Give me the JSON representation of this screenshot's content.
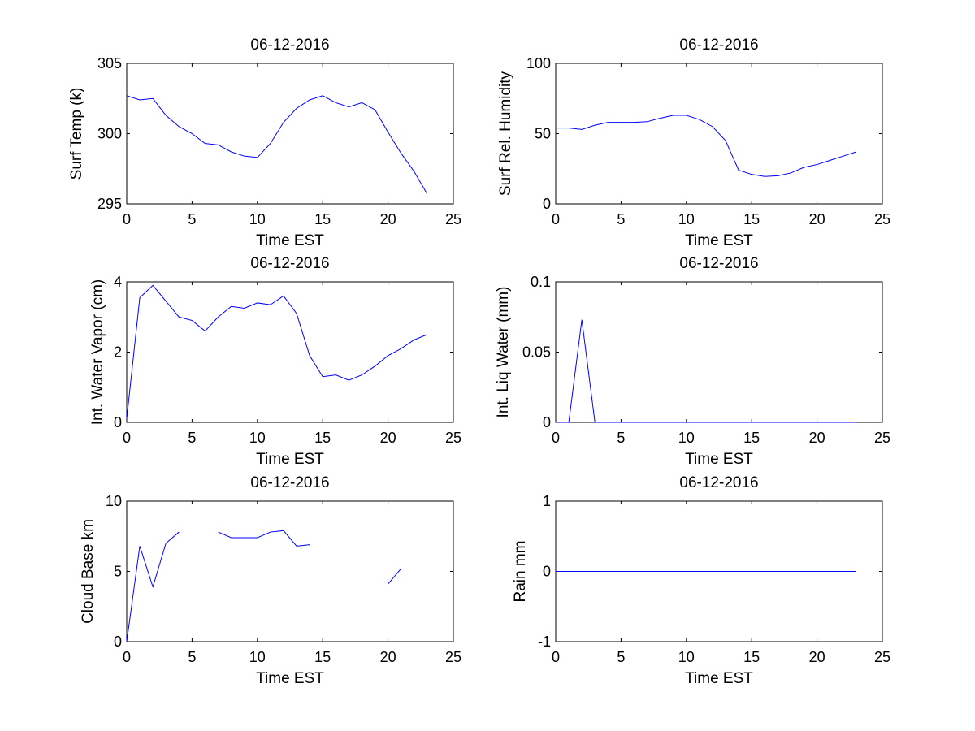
{
  "chart_data": [
    {
      "id": "surf-temp",
      "type": "line",
      "title": "06-12-2016",
      "xlabel": "Time EST",
      "ylabel": "Surf Temp (k)",
      "xlim": [
        0,
        25
      ],
      "ylim": [
        295,
        305
      ],
      "xticks": [
        0,
        5,
        10,
        15,
        20,
        25
      ],
      "yticks": [
        295,
        300,
        305
      ],
      "series": [
        {
          "name": "Surf Temp",
          "x": [
            0,
            1,
            2,
            3,
            4,
            5,
            6,
            7,
            8,
            9,
            10,
            11,
            12,
            13,
            14,
            15,
            16,
            17,
            18,
            19,
            20,
            21,
            22,
            23
          ],
          "y": [
            302.7,
            302.4,
            302.5,
            301.3,
            300.5,
            300.0,
            299.3,
            299.2,
            298.7,
            298.4,
            298.3,
            299.3,
            300.8,
            301.8,
            302.4,
            302.7,
            302.2,
            301.9,
            302.2,
            301.7,
            300.1,
            298.6,
            297.3,
            295.7
          ]
        }
      ]
    },
    {
      "id": "surf-rh",
      "type": "line",
      "title": "06-12-2016",
      "xlabel": "Time EST",
      "ylabel": "Surf Rel. Humidity",
      "xlim": [
        0,
        25
      ],
      "ylim": [
        0,
        100
      ],
      "xticks": [
        0,
        5,
        10,
        15,
        20,
        25
      ],
      "yticks": [
        0,
        50,
        100
      ],
      "series": [
        {
          "name": "Surf Rel. Humidity",
          "x": [
            0,
            1,
            2,
            3,
            4,
            5,
            6,
            7,
            8,
            9,
            10,
            11,
            12,
            13,
            14,
            15,
            16,
            17,
            18,
            19,
            20,
            21,
            22,
            23
          ],
          "y": [
            54,
            54,
            53,
            56,
            58,
            58,
            58,
            58.5,
            61,
            63,
            63,
            60,
            55,
            45,
            24,
            21,
            19.5,
            20,
            22,
            26,
            28,
            31,
            34,
            37
          ]
        }
      ]
    },
    {
      "id": "water-vapor",
      "type": "line",
      "title": "06-12-2016",
      "xlabel": "Time EST",
      "ylabel": "Int. Water Vapor (cm)",
      "xlim": [
        0,
        25
      ],
      "ylim": [
        0,
        4
      ],
      "xticks": [
        0,
        5,
        10,
        15,
        20,
        25
      ],
      "yticks": [
        0,
        2,
        4
      ],
      "series": [
        {
          "name": "Int. Water Vapor",
          "x": [
            0,
            1,
            2,
            3,
            4,
            5,
            6,
            7,
            8,
            9,
            10,
            11,
            12,
            13,
            14,
            15,
            16,
            17,
            18,
            19,
            20,
            21,
            22,
            23
          ],
          "y": [
            0.1,
            3.55,
            3.9,
            3.45,
            3.0,
            2.9,
            2.6,
            3.0,
            3.3,
            3.25,
            3.4,
            3.35,
            3.6,
            3.1,
            1.9,
            1.3,
            1.35,
            1.2,
            1.35,
            1.6,
            1.9,
            2.1,
            2.35,
            2.5
          ]
        }
      ]
    },
    {
      "id": "liq-water",
      "type": "line",
      "title": "06-12-2016",
      "xlabel": "Time EST",
      "ylabel": "Int. Liq Water (mm)",
      "xlim": [
        0,
        25
      ],
      "ylim": [
        0,
        0.1
      ],
      "xticks": [
        0,
        5,
        10,
        15,
        20,
        25
      ],
      "yticks": [
        0,
        0.05,
        0.1
      ],
      "series": [
        {
          "name": "Int. Liq Water",
          "x": [
            0,
            1,
            2,
            3,
            4,
            5,
            6,
            7,
            8,
            9,
            10,
            11,
            12,
            13,
            14,
            15,
            16,
            17,
            18,
            19,
            20,
            21,
            22,
            23
          ],
          "y": [
            0,
            0,
            0.073,
            0,
            0,
            0,
            0,
            0,
            0,
            0,
            0,
            0,
            0,
            0,
            0,
            0,
            0,
            0,
            0,
            0,
            0,
            0,
            0,
            0
          ]
        }
      ]
    },
    {
      "id": "cloud-base",
      "type": "line",
      "title": "06-12-2016",
      "xlabel": "Time EST",
      "ylabel": "Cloud Base km",
      "xlim": [
        0,
        25
      ],
      "ylim": [
        0,
        10
      ],
      "xticks": [
        0,
        5,
        10,
        15,
        20,
        25
      ],
      "yticks": [
        0,
        5,
        10
      ],
      "series": [
        {
          "name": "Cloud Base",
          "x": [
            0,
            1,
            2,
            3,
            4,
            5,
            6,
            7,
            8,
            9,
            10,
            11,
            12,
            13,
            14,
            15,
            16,
            17,
            18,
            19,
            20,
            21,
            22,
            23
          ],
          "y": [
            0,
            6.8,
            3.9,
            7.0,
            7.8,
            null,
            null,
            7.8,
            7.4,
            7.4,
            7.4,
            7.8,
            7.9,
            6.8,
            6.9,
            null,
            null,
            null,
            null,
            null,
            4.1,
            5.2,
            null,
            null
          ]
        }
      ]
    },
    {
      "id": "rain",
      "type": "line",
      "title": "06-12-2016",
      "xlabel": "Time EST",
      "ylabel": "Rain mm",
      "xlim": [
        0,
        25
      ],
      "ylim": [
        -1,
        1
      ],
      "xticks": [
        0,
        5,
        10,
        15,
        20,
        25
      ],
      "yticks": [
        -1,
        0,
        1
      ],
      "series": [
        {
          "name": "Rain",
          "x": [
            0,
            1,
            2,
            3,
            4,
            5,
            6,
            7,
            8,
            9,
            10,
            11,
            12,
            13,
            14,
            15,
            16,
            17,
            18,
            19,
            20,
            21,
            22,
            23
          ],
          "y": [
            0,
            0,
            0,
            0,
            0,
            0,
            0,
            0,
            0,
            0,
            0,
            0,
            0,
            0,
            0,
            0,
            0,
            0,
            0,
            0,
            0,
            0,
            0,
            0
          ]
        }
      ]
    }
  ]
}
